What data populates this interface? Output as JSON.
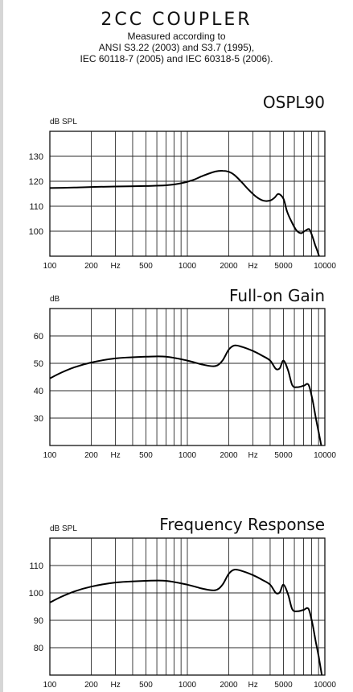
{
  "header": {
    "title": "2CC COUPLER",
    "lines": [
      "Measured according to",
      "ANSI S3.22 (2003) and S3.7 (1995),",
      "IEC 60118-7 (2005) and IEC 60318-5 (2006)."
    ]
  },
  "chart_data": [
    {
      "type": "line",
      "title": "OSPL90",
      "ylabel": "dB SPL",
      "xscale": "log",
      "xlim": [
        100,
        10000
      ],
      "ylim": [
        90,
        140
      ],
      "yticks": [
        100,
        110,
        120,
        130
      ],
      "xtick_labels": [
        {
          "value": 100,
          "label": "100"
        },
        {
          "value": 200,
          "label": "200"
        },
        {
          "value": 300,
          "label": "Hz"
        },
        {
          "value": 500,
          "label": "500"
        },
        {
          "value": 1000,
          "label": "1000"
        },
        {
          "value": 2000,
          "label": "2000"
        },
        {
          "value": 3000,
          "label": "Hz"
        },
        {
          "value": 5000,
          "label": "5000"
        },
        {
          "value": 10000,
          "label": "10000"
        }
      ],
      "grid": true,
      "x": [
        100,
        150,
        200,
        300,
        500,
        700,
        900,
        1100,
        1300,
        1600,
        1800,
        2000,
        2200,
        2500,
        2800,
        3200,
        3600,
        4000,
        4300,
        4600,
        5000,
        5300,
        5700,
        6200,
        6700,
        7200,
        7700,
        8100,
        8500,
        8900,
        9300
      ],
      "y": [
        117.3,
        117.5,
        117.7,
        117.9,
        118.1,
        118.4,
        119.2,
        120.5,
        122.2,
        123.9,
        124.2,
        123.8,
        122.5,
        119.5,
        116.5,
        113.6,
        112.2,
        112.3,
        113.4,
        114.9,
        113.0,
        108.0,
        104.0,
        100.4,
        99.2,
        100.2,
        100.8,
        98.0,
        94.5,
        91.5,
        88.0
      ]
    },
    {
      "type": "line",
      "title": "Full-on Gain",
      "ylabel": "dB",
      "xscale": "log",
      "xlim": [
        100,
        10000
      ],
      "ylim": [
        20,
        70
      ],
      "yticks": [
        30,
        40,
        50,
        60
      ],
      "xtick_labels": [
        {
          "value": 100,
          "label": "100"
        },
        {
          "value": 200,
          "label": "200"
        },
        {
          "value": 300,
          "label": "Hz"
        },
        {
          "value": 500,
          "label": "500"
        },
        {
          "value": 1000,
          "label": "1000"
        },
        {
          "value": 2000,
          "label": "2000"
        },
        {
          "value": 3000,
          "label": "Hz"
        },
        {
          "value": 5000,
          "label": "5000"
        },
        {
          "value": 10000,
          "label": "10000"
        }
      ],
      "grid": true,
      "x": [
        100,
        120,
        150,
        200,
        300,
        500,
        700,
        1000,
        1300,
        1600,
        1800,
        2000,
        2200,
        2500,
        3000,
        3500,
        4000,
        4400,
        4700,
        5000,
        5400,
        5800,
        6300,
        7000,
        7600,
        8100,
        8600,
        9000,
        9500
      ],
      "y": [
        44.5,
        46.5,
        48.5,
        50.3,
        51.8,
        52.4,
        52.4,
        51.0,
        49.5,
        49.0,
        51.0,
        55.0,
        56.5,
        56.0,
        54.5,
        52.8,
        51.0,
        48.0,
        48.2,
        51.0,
        47.5,
        42.0,
        41.3,
        41.8,
        42.2,
        37.0,
        30.0,
        25.0,
        19.0
      ]
    },
    {
      "type": "line",
      "title": "Frequency Response",
      "ylabel": "dB SPL",
      "xscale": "log",
      "xlim": [
        100,
        10000
      ],
      "ylim": [
        70,
        120
      ],
      "yticks": [
        80,
        90,
        100,
        110
      ],
      "xtick_labels": [
        {
          "value": 100,
          "label": "100"
        },
        {
          "value": 200,
          "label": "200"
        },
        {
          "value": 300,
          "label": "Hz"
        },
        {
          "value": 500,
          "label": "500"
        },
        {
          "value": 1000,
          "label": "1000"
        },
        {
          "value": 2000,
          "label": "2000"
        },
        {
          "value": 3000,
          "label": "Hz"
        },
        {
          "value": 5000,
          "label": "5000"
        },
        {
          "value": 10000,
          "label": "10000"
        }
      ],
      "grid": true,
      "x": [
        100,
        120,
        150,
        200,
        300,
        500,
        700,
        1000,
        1300,
        1600,
        1800,
        2000,
        2200,
        2500,
        3000,
        3500,
        4000,
        4400,
        4700,
        5000,
        5400,
        5800,
        6300,
        7000,
        7600,
        8100,
        8600,
        9000,
        9500
      ],
      "y": [
        96.5,
        98.5,
        100.5,
        102.3,
        103.8,
        104.4,
        104.4,
        103.0,
        101.5,
        101.0,
        103.0,
        107.0,
        108.5,
        108.0,
        106.5,
        104.8,
        103.0,
        100.0,
        100.2,
        103.0,
        99.5,
        94.0,
        93.3,
        93.8,
        94.2,
        89.0,
        82.0,
        77.0,
        70.0
      ]
    }
  ]
}
